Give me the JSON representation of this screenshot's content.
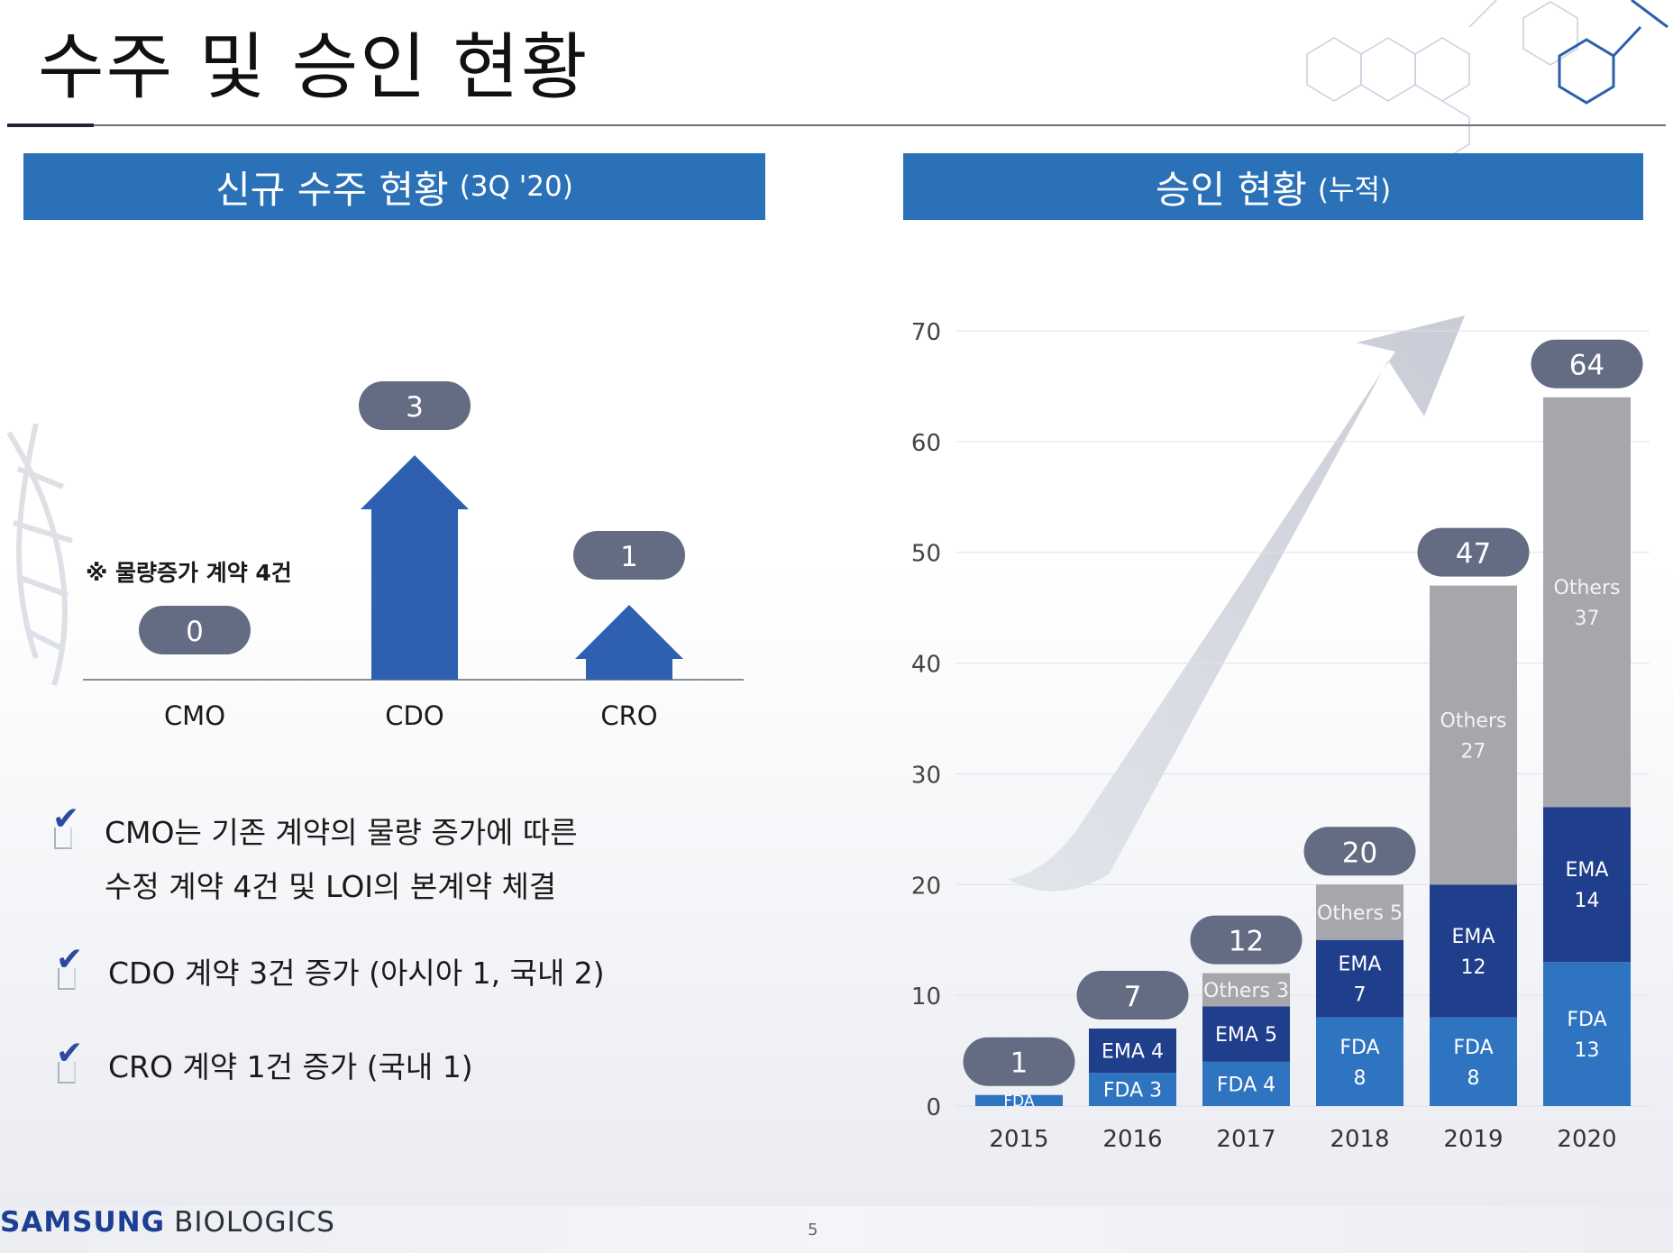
{
  "slide": {
    "title": "수주 및 승인 현황",
    "page_number": "5",
    "logo_primary": "SAMSUNG",
    "logo_secondary": "BIOLOGICS"
  },
  "left_panel": {
    "banner_title": "신규 수주 현황",
    "banner_sub": "(3Q '20)",
    "note": "※ 물량증가 계약 4건",
    "bullets": [
      {
        "line1": "CMO는 기존 계약의 물량 증가에 따른",
        "line2": "수정 계약 4건 및 LOI의 본계약 체결"
      },
      {
        "line1": "CDO 계약 3건 증가 (아시아 1, 국내 2)"
      },
      {
        "line1": "CRO 계약 1건 증가 (국내 1)"
      }
    ]
  },
  "right_panel": {
    "banner_title": "승인 현황",
    "banner_sub": "(누적)"
  },
  "colors": {
    "banner": "#2b71b8",
    "fda": "#2e74c0",
    "ema": "#1f3e8c",
    "others": "#a5a7ab",
    "pill": "#636c82",
    "arrow_block": "#2e5fb0"
  },
  "chart_data": [
    {
      "type": "bar",
      "title": "신규 수주 현황 (3Q '20)",
      "categories": [
        "CMO",
        "CDO",
        "CRO"
      ],
      "values": [
        0,
        3,
        1
      ],
      "labels": [
        "0",
        "3",
        "1"
      ]
    },
    {
      "type": "bar",
      "stacked": true,
      "title": "승인 현황 (누적)",
      "categories": [
        "2015",
        "2016",
        "2017",
        "2018",
        "2019",
        "2020"
      ],
      "ylim": [
        0,
        70
      ],
      "yticks": [
        0,
        10,
        20,
        30,
        40,
        50,
        60,
        70
      ],
      "grid": true,
      "series": [
        {
          "name": "FDA",
          "values": [
            1,
            3,
            4,
            8,
            8,
            13
          ],
          "labels": [
            "FDA",
            "FDA 3",
            "FDA 4",
            "FDA\n8",
            "FDA\n8",
            "FDA\n13"
          ]
        },
        {
          "name": "EMA",
          "values": [
            0,
            4,
            5,
            7,
            12,
            14
          ],
          "labels": [
            "",
            "EMA 4",
            "EMA 5",
            "EMA\n7",
            "EMA\n12",
            "EMA\n14"
          ]
        },
        {
          "name": "Others",
          "values": [
            0,
            0,
            3,
            5,
            27,
            37
          ],
          "labels": [
            "",
            "",
            "Others 3",
            "Others 5",
            "Others\n27",
            "Others\n37"
          ]
        }
      ],
      "totals": [
        "1",
        "7",
        "12",
        "20",
        "47",
        "64"
      ]
    }
  ]
}
